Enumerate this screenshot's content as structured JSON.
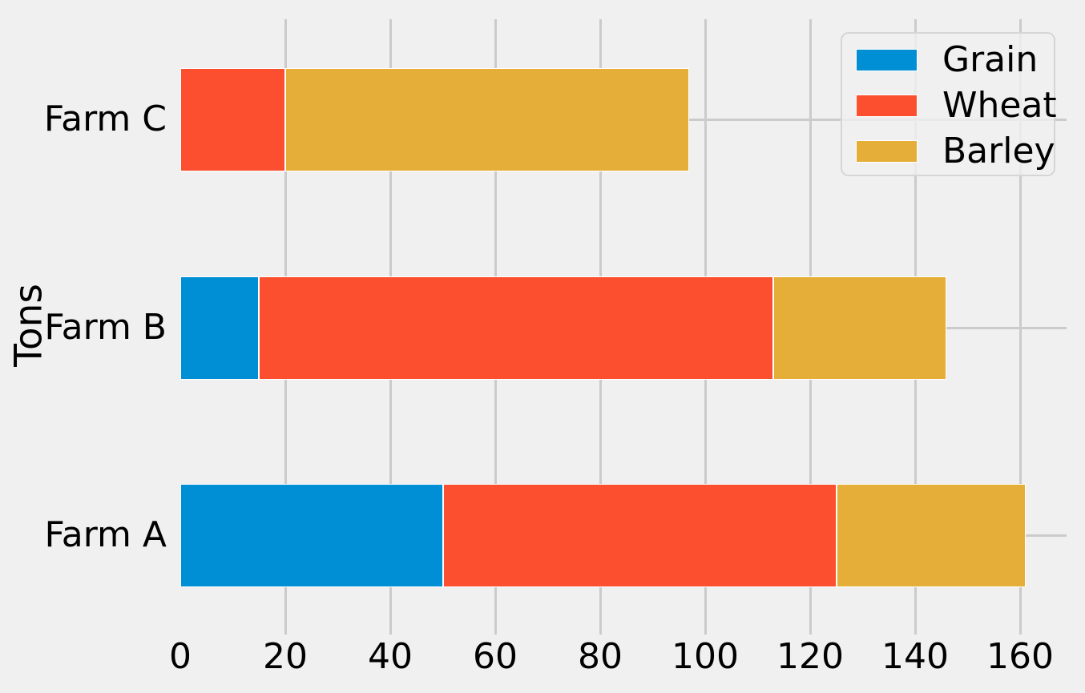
{
  "chart_data": {
    "type": "bar",
    "orientation": "horizontal",
    "stacked": true,
    "title": "",
    "xlabel": "",
    "ylabel": "Tons",
    "categories": [
      "Farm A",
      "Farm B",
      "Farm C"
    ],
    "series": [
      {
        "name": "Grain",
        "color": "#008fd5",
        "values": [
          50,
          15,
          0
        ]
      },
      {
        "name": "Wheat",
        "color": "#fc4f30",
        "values": [
          75,
          98,
          20
        ]
      },
      {
        "name": "Barley",
        "color": "#e5ae38",
        "values": [
          36,
          33,
          77
        ]
      }
    ],
    "stack_totals": [
      161,
      146,
      97
    ],
    "x_ticks": [
      0,
      20,
      40,
      60,
      80,
      100,
      120,
      140,
      160
    ],
    "xlim": [
      0,
      169
    ],
    "grid": true,
    "legend": {
      "position": "upper right",
      "labels": [
        "Grain",
        "Wheat",
        "Barley"
      ]
    },
    "colors": {
      "background": "#f0f0f0",
      "gridline": "#cbcbcb",
      "text": "#000000",
      "bar_edge": "#ffffff"
    }
  }
}
